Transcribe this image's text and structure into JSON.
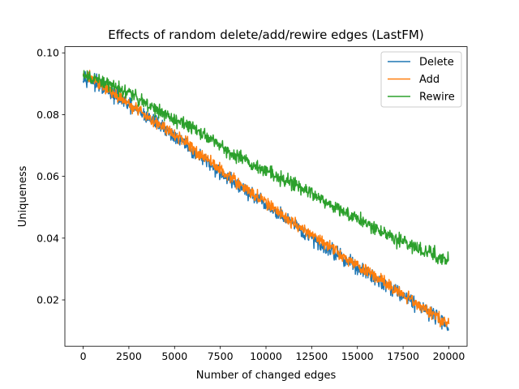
{
  "chart_data": {
    "type": "line",
    "title": "Effects of random delete/add/rewire edges (LastFM)",
    "xlabel": "Number of changed edges",
    "ylabel": "Uniqueness",
    "xlim": [
      -1000,
      21000
    ],
    "ylim": [
      0.005,
      0.102
    ],
    "x_ticks": [
      0,
      2500,
      5000,
      7500,
      10000,
      12500,
      15000,
      17500,
      20000
    ],
    "x_tick_labels": [
      "0",
      "2500",
      "5000",
      "7500",
      "10000",
      "12500",
      "15000",
      "17500",
      "20000"
    ],
    "y_ticks": [
      0.02,
      0.04,
      0.06,
      0.08,
      0.1
    ],
    "y_tick_labels": [
      "0.02",
      "0.04",
      "0.06",
      "0.08",
      "0.10"
    ],
    "legend_position": "top-right",
    "grid": false,
    "series": [
      {
        "name": "Delete",
        "color": "#1f77b4",
        "noise": 0.0018,
        "x": [
          0,
          1000,
          2000,
          3000,
          4000,
          5000,
          6000,
          7000,
          8000,
          9000,
          10000,
          11000,
          12000,
          13000,
          14000,
          15000,
          16000,
          17000,
          18000,
          19000,
          20000
        ],
        "y": [
          0.093,
          0.089,
          0.085,
          0.081,
          0.0775,
          0.073,
          0.068,
          0.0635,
          0.059,
          0.055,
          0.0505,
          0.0465,
          0.042,
          0.038,
          0.0345,
          0.0305,
          0.027,
          0.0235,
          0.0195,
          0.016,
          0.0115
        ]
      },
      {
        "name": "Add",
        "color": "#ff7f0e",
        "noise": 0.0015,
        "x": [
          0,
          1000,
          2000,
          3000,
          4000,
          5000,
          6000,
          7000,
          8000,
          9000,
          10000,
          11000,
          12000,
          13000,
          14000,
          15000,
          16000,
          17000,
          18000,
          19000,
          20000
        ],
        "y": [
          0.0935,
          0.0895,
          0.0855,
          0.0815,
          0.0775,
          0.0735,
          0.069,
          0.0645,
          0.06,
          0.0555,
          0.0515,
          0.047,
          0.043,
          0.039,
          0.035,
          0.031,
          0.0275,
          0.0235,
          0.0195,
          0.016,
          0.0125
        ]
      },
      {
        "name": "Rewire",
        "color": "#2ca02c",
        "noise": 0.0017,
        "x": [
          0,
          1000,
          2000,
          3000,
          4000,
          5000,
          6000,
          7000,
          8000,
          9000,
          10000,
          11000,
          12000,
          13000,
          14000,
          15000,
          16000,
          17000,
          18000,
          19000,
          20000
        ],
        "y": [
          0.0925,
          0.0905,
          0.0885,
          0.0855,
          0.0815,
          0.0785,
          0.0755,
          0.072,
          0.068,
          0.065,
          0.062,
          0.059,
          0.056,
          0.053,
          0.0495,
          0.0465,
          0.043,
          0.04,
          0.0375,
          0.035,
          0.0325
        ]
      }
    ]
  }
}
